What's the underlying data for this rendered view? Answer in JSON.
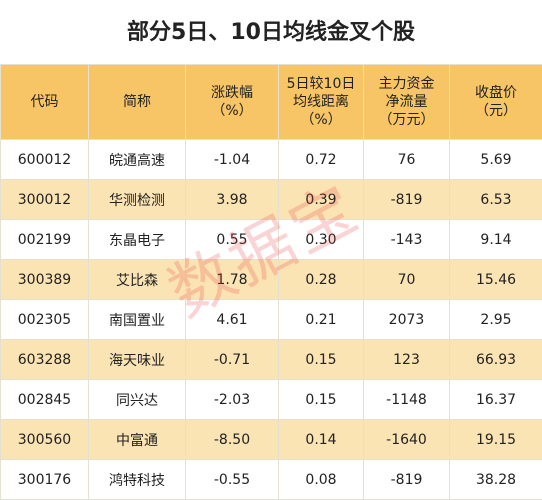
{
  "title": "部分5日、10日均线金叉个股",
  "watermark": "数据宝",
  "table": {
    "header": [
      [
        "代码"
      ],
      [
        "简称"
      ],
      [
        "涨跌幅",
        "（%）"
      ],
      [
        "5日较10日",
        "均线距离",
        "（%）"
      ],
      [
        "主力资金",
        "净流量",
        "（万元）"
      ],
      [
        "收盘价",
        "（元）"
      ]
    ],
    "rows": [
      [
        "600012",
        "皖通高速",
        "-1.04",
        "0.72",
        "76",
        "5.69"
      ],
      [
        "300012",
        "华测检测",
        "3.98",
        "0.39",
        "-819",
        "6.53"
      ],
      [
        "002199",
        "东晶电子",
        "0.55",
        "0.30",
        "-143",
        "9.14"
      ],
      [
        "300389",
        "艾比森",
        "1.78",
        "0.28",
        "70",
        "15.46"
      ],
      [
        "002305",
        "南国置业",
        "4.61",
        "0.21",
        "2073",
        "2.95"
      ],
      [
        "603288",
        "海天味业",
        "-0.71",
        "0.15",
        "123",
        "66.93"
      ],
      [
        "002845",
        "同兴达",
        "-2.03",
        "0.15",
        "-1148",
        "16.37"
      ],
      [
        "300560",
        "中富通",
        "-8.50",
        "0.14",
        "-1640",
        "19.15"
      ],
      [
        "300176",
        "鸿特科技",
        "-0.55",
        "0.08",
        "-819",
        "38.28"
      ]
    ]
  }
}
